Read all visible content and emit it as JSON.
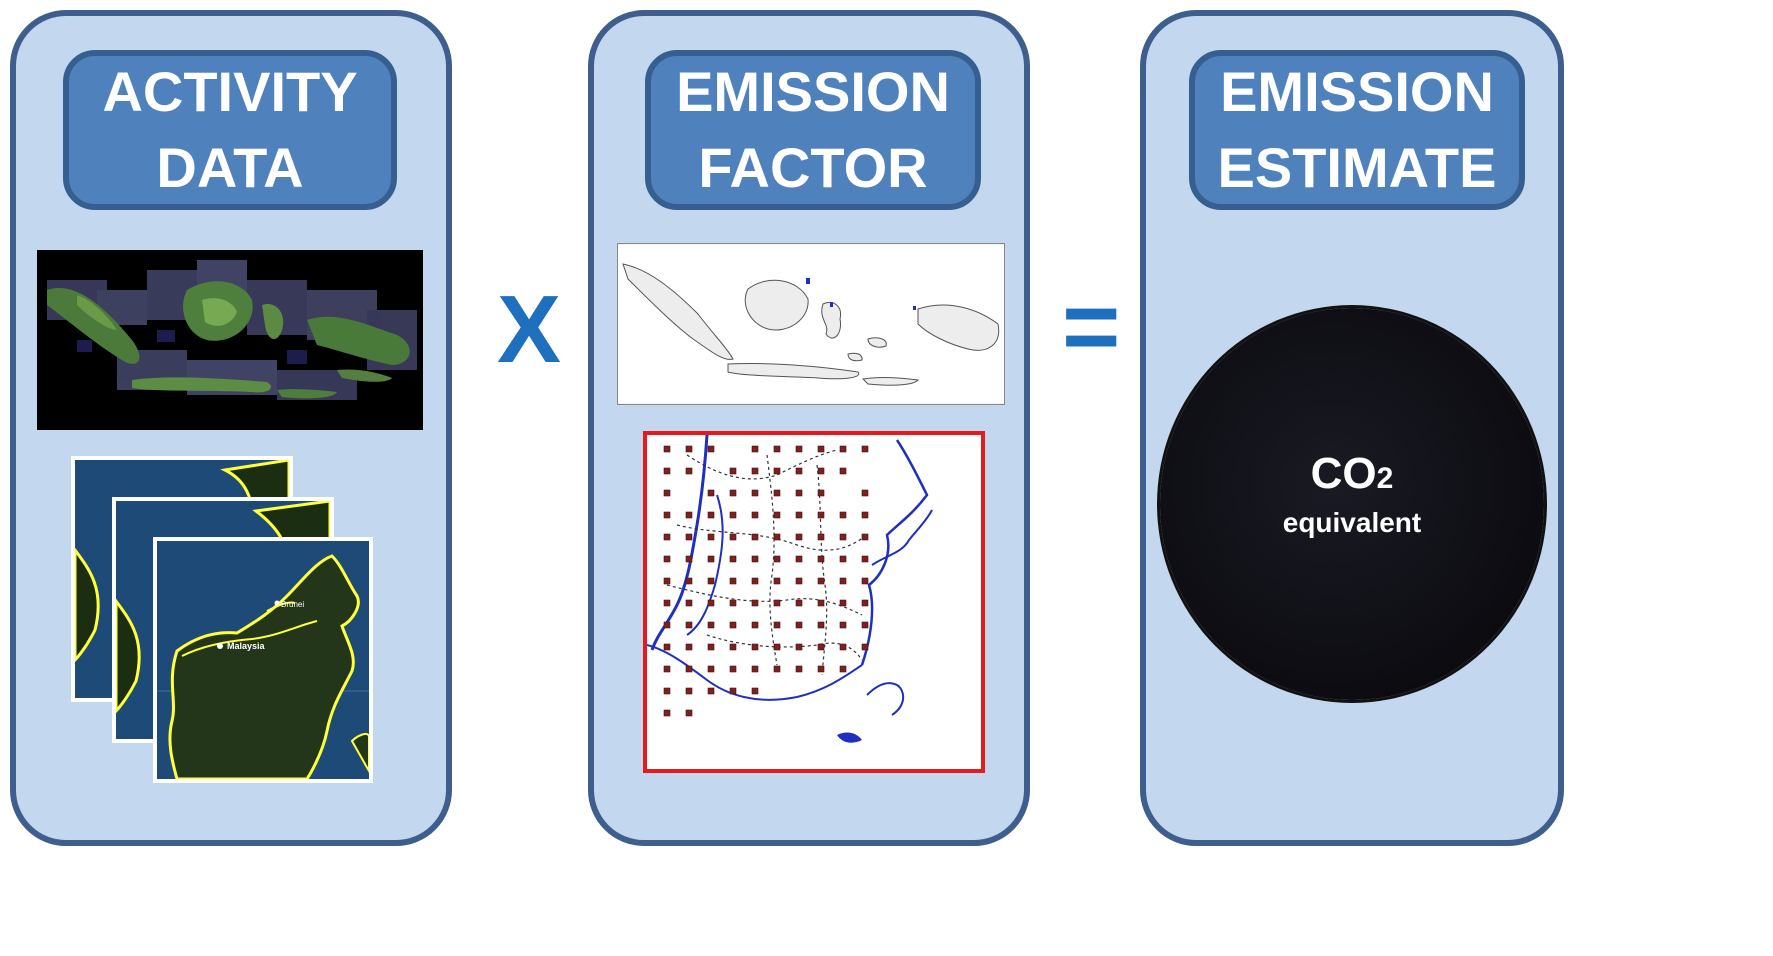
{
  "panels": [
    {
      "title_line1": "ACTIVITY",
      "title_line2": "DATA"
    },
    {
      "title_line1": "EMISSION",
      "title_line2": "FACTOR"
    },
    {
      "title_line1": "EMISSION",
      "title_line2": "ESTIMATE"
    }
  ],
  "operators": {
    "multiply": "X",
    "equals": "="
  },
  "result": {
    "formula_main": "CO",
    "formula_subscript": "2",
    "caption": "equivalent"
  },
  "maps": {
    "label_malaysia": "Malaysia",
    "label_brunei": "Brunei"
  },
  "colors": {
    "panel_fill": "#c3d7ee",
    "panel_border": "#3e5f8d",
    "header_fill": "#4f81bd",
    "operator": "#1f6fbf",
    "grid_frame": "#e41a1c",
    "grid_marker": "#8b1a1a",
    "coastline": "#1f2fbf"
  }
}
